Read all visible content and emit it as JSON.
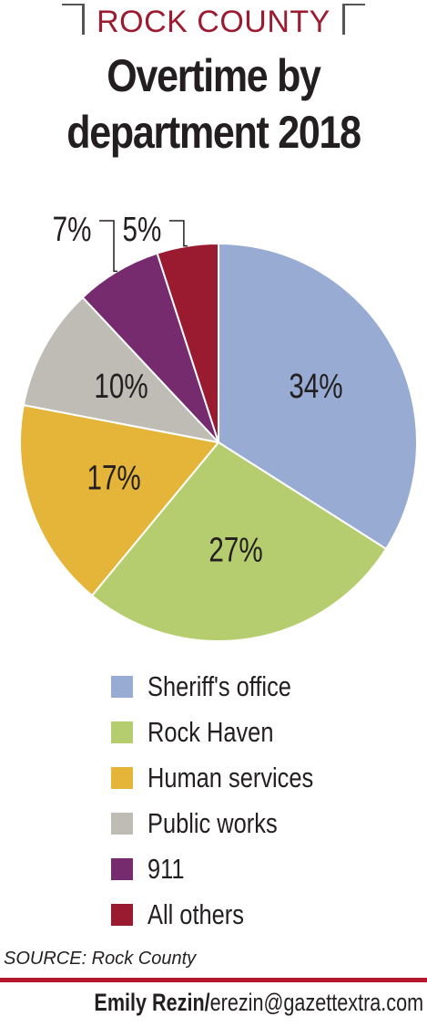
{
  "header": {
    "kicker": "ROCK COUNTY",
    "title_line1": "Overtime by",
    "title_line2": "department 2018"
  },
  "chart_data": {
    "type": "pie",
    "title": "Overtime by department 2018",
    "categories": [
      "Sheriff's office",
      "Rock Haven",
      "Human services",
      "Public works",
      "911",
      "All others"
    ],
    "values": [
      34,
      27,
      17,
      10,
      7,
      5
    ],
    "labels": [
      "34%",
      "27%",
      "17%",
      "10%",
      "7%",
      "5%"
    ],
    "colors": [
      "#97abd3",
      "#b5cd6e",
      "#e5b53a",
      "#bfbcb6",
      "#762b6e",
      "#9a1b2f"
    ],
    "legend_position": "bottom"
  },
  "footer": {
    "source": "SOURCE: Rock County",
    "byline_name": "Emily Rezin/",
    "byline_email": "erezin@gazettextra.com"
  }
}
